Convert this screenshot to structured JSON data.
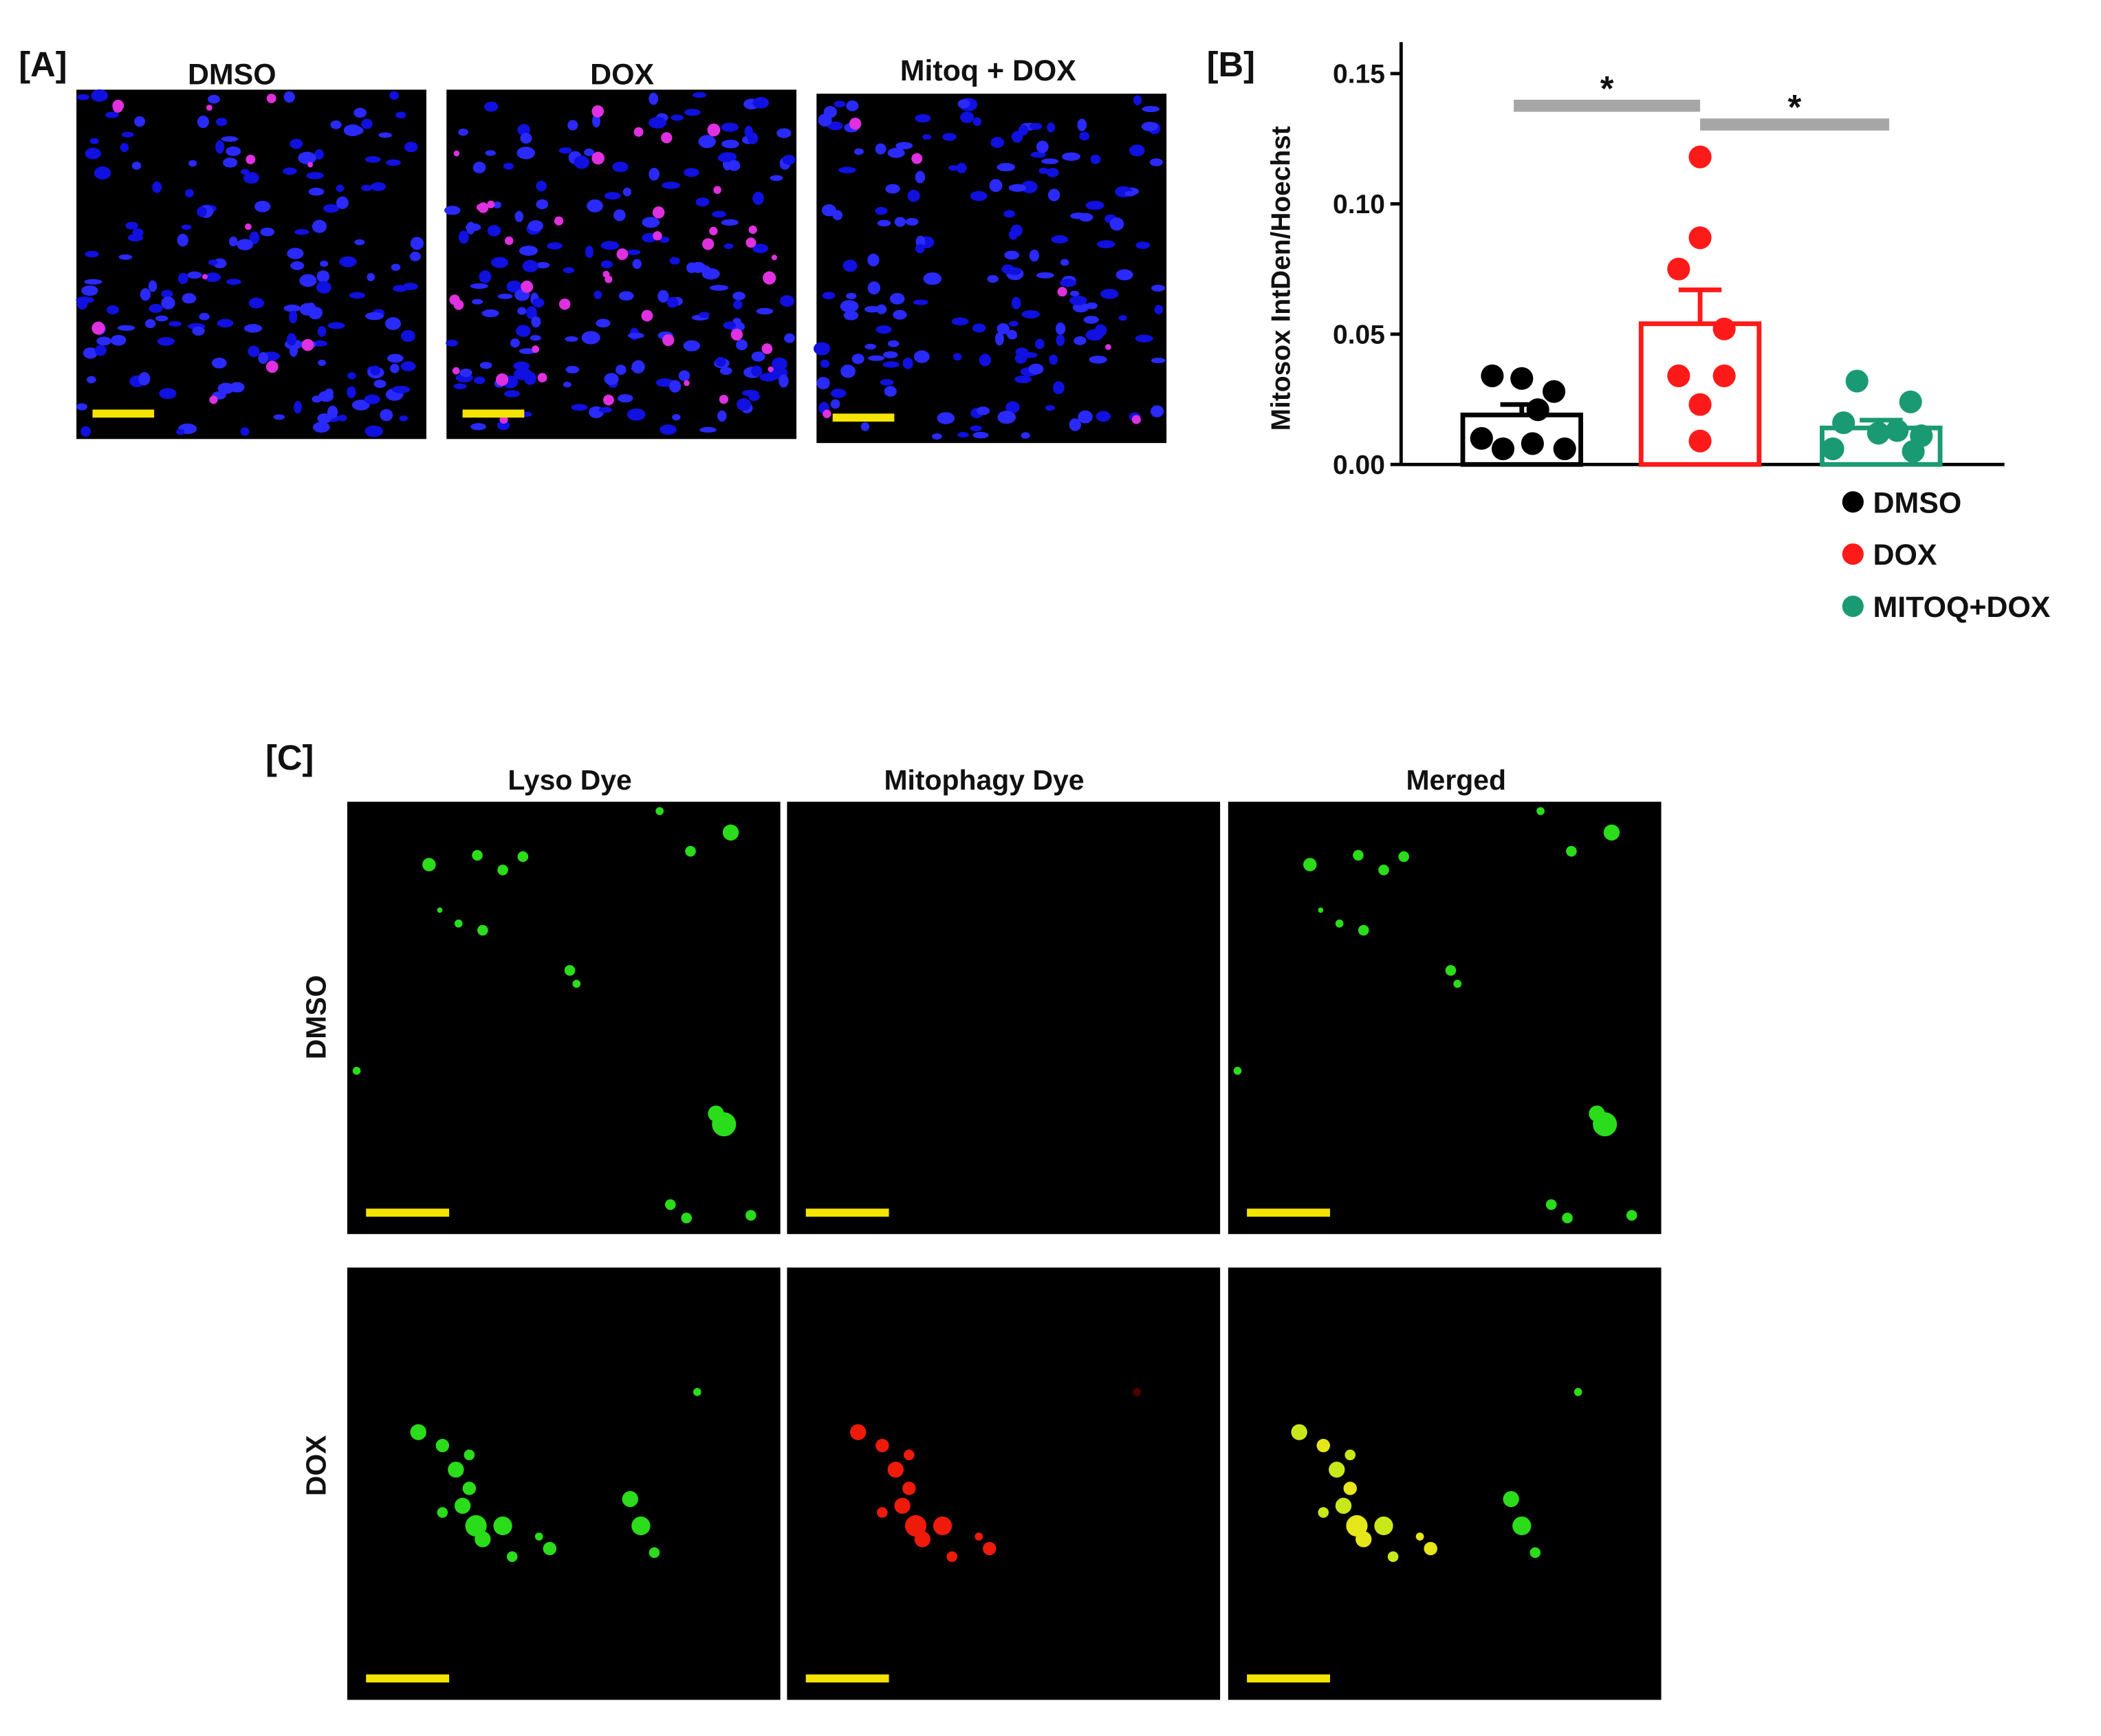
{
  "panel_a": {
    "label": "[A]",
    "titles": [
      "DMSO",
      "DOX",
      "Mitoq + DOX"
    ]
  },
  "chart_data": {
    "type": "bar",
    "label": "[B]",
    "y_label": "Mitosox IntDen/Hoechst",
    "ylim": [
      0,
      0.16
    ],
    "yticks": [
      {
        "value": 0,
        "label": "0.00"
      },
      {
        "value": 0.05,
        "label": "0.05"
      },
      {
        "value": 0.1,
        "label": "0.10"
      },
      {
        "value": 0.15,
        "label": "0.15"
      }
    ],
    "series": [
      {
        "name": "DMSO",
        "color": "#000000",
        "mean": 0.019,
        "sem": 0.004,
        "values": [
          0.034,
          0.033,
          0.028,
          0.021,
          0.01,
          0.008,
          0.006,
          0.006
        ]
      },
      {
        "name": "DOX",
        "color": "#ff1a1a",
        "mean": 0.054,
        "sem": 0.013,
        "values": [
          0.118,
          0.087,
          0.075,
          0.052,
          0.034,
          0.034,
          0.023,
          0.009
        ]
      },
      {
        "name": "MITOQ+DOX",
        "color": "#1a9a73",
        "mean": 0.014,
        "sem": 0.003,
        "values": [
          0.032,
          0.024,
          0.016,
          0.013,
          0.012,
          0.011,
          0.006,
          0.005
        ]
      }
    ],
    "significance": [
      {
        "label": "*",
        "between": [
          "DMSO",
          "DOX"
        ]
      },
      {
        "label": "*",
        "between": [
          "DOX",
          "MITOQ+DOX"
        ]
      }
    ]
  },
  "panel_c": {
    "label": "[C]",
    "columns": [
      "Lyso Dye",
      "Mitophagy Dye",
      "Merged"
    ],
    "rows": [
      "DMSO",
      "DOX"
    ]
  }
}
